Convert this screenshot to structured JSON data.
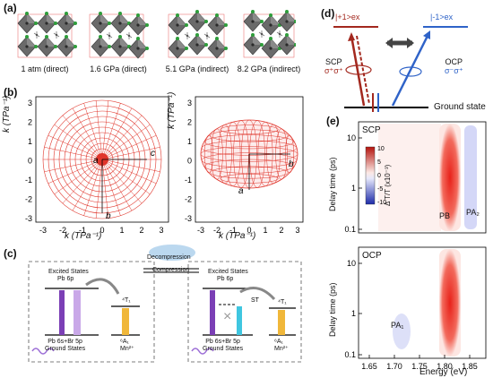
{
  "panels": {
    "a": "(a)",
    "b": "(b)",
    "c": "(c)",
    "d": "(d)",
    "e": "(e)"
  },
  "panel_a": {
    "structures": [
      "1 atm (direct)",
      "1.6 GPa (direct)",
      "5.1 GPa (indirect)",
      "8.2 GPa (indirect)"
    ],
    "colors": {
      "octahedra": "#5f5f5f",
      "pb": "#2a2a2a",
      "halide": "#2e9e3a",
      "outline": "#e85a5a"
    }
  },
  "panel_b": {
    "left": {
      "ylabel": "k (TPa⁻¹)",
      "xlabel": "k (TPa⁻¹)",
      "ticks": [
        "-3",
        "-2",
        "-1",
        "0",
        "1",
        "2",
        "3"
      ],
      "axis_labels": [
        "a",
        "b",
        "c"
      ]
    },
    "right": {
      "ylabel": "k (TPa⁻¹)",
      "xlabel": "k (TPa⁻¹)",
      "ticks": [
        "-3",
        "-2",
        "-1",
        "0",
        "1",
        "2",
        "3"
      ],
      "axis_labels": [
        "a",
        "b"
      ]
    },
    "mesh_color": "#e0352b"
  },
  "panel_c": {
    "decompression": "Decompression",
    "compression": "Compression",
    "left_box": {
      "excited_title": "Excited States",
      "excited_sub": "Pb 6p",
      "ground_title": "Pb 6s+Br 5p",
      "ground_sub": "Ground States",
      "t1": "⁴T₁",
      "a1": "⁶A₁",
      "mn": "Mn²⁺"
    },
    "right_box": {
      "excited_title": "Excited States",
      "excited_sub": "Pb 6p",
      "ground_title": "Pb 6s+Br 5p",
      "ground_sub": "Ground States",
      "st": "ST",
      "t1": "⁴T₁",
      "a1": "⁶A₁",
      "mn": "Mn²⁺"
    }
  },
  "panel_d": {
    "plus": "|+1>ex",
    "minus": "|-1>ex",
    "scp": "SCP",
    "scp_sub": "σ⁺σ⁺",
    "ocp": "OCP",
    "ocp_sub": "σ⁻σ⁺",
    "ground": "Ground state",
    "colors": {
      "plus": "#a3281e",
      "minus": "#2f63c8"
    }
  },
  "panel_e": {
    "top_label": "SCP",
    "bottom_label": "OCP",
    "ylabel": "Delay time (ps)",
    "xlabel": "Energy (eV)",
    "y_ticks": [
      "10",
      "1",
      "0.1"
    ],
    "x_ticks": [
      "1.65",
      "1.70",
      "1.75",
      "1.80",
      "1.85"
    ],
    "pb": "PB",
    "pa2": "PA₂",
    "pa1": "PA₁",
    "colorbar_title": "Δ T/T (x10⁻³)",
    "colorbar_ticks": [
      "10",
      "5",
      "0",
      "-5",
      "-10"
    ]
  }
}
